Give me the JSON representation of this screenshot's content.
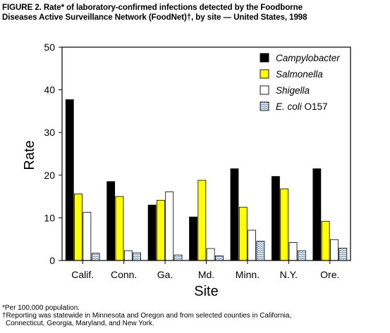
{
  "title": {
    "line1": "FIGURE 2. Rate* of laboratory-confirmed infections detected by the Foodborne",
    "line2": "Diseases Active Surveillance Network (FoodNet)†, by site — United States, 1998"
  },
  "footnotes": {
    "note1": "*Per 100,000 population.",
    "note2": "†Reporting was statewide in Minnesota and Oregon and from selected counties in California,",
    "note2b": "Connecticut, Georgia, Maryland, and New York."
  },
  "chart_data": {
    "type": "bar",
    "xlabel": "Site",
    "ylabel": "Rate",
    "ylim": [
      0,
      50
    ],
    "yticks": [
      0,
      10,
      20,
      30,
      40,
      50
    ],
    "categories": [
      "Calif.",
      "Conn.",
      "Ga.",
      "Md.",
      "Minn.",
      "N.Y.",
      "Ore."
    ],
    "legend_position": "top-right",
    "grid": false,
    "series": [
      {
        "name": "Campylobacter",
        "italic_part": "Campylobacter",
        "suffix": "",
        "color": "#000000",
        "pattern": "solid",
        "values": [
          37.7,
          18.5,
          13.0,
          10.2,
          21.5,
          19.7,
          21.5
        ]
      },
      {
        "name": "Salmonella",
        "italic_part": "Salmonella",
        "suffix": "",
        "color": "#ffff00",
        "pattern": "solid",
        "values": [
          15.6,
          15.0,
          14.1,
          18.8,
          12.5,
          16.8,
          9.2
        ]
      },
      {
        "name": "Shigella",
        "italic_part": "Shigella",
        "suffix": "",
        "color": "#ffffff",
        "pattern": "solid",
        "values": [
          11.3,
          2.3,
          16.1,
          2.8,
          7.1,
          4.2,
          4.9
        ]
      },
      {
        "name": "E. coli O157",
        "italic_part": "E. coli",
        "suffix": " O157",
        "color": "#6699cc",
        "pattern": "wavy",
        "values": [
          1.7,
          1.8,
          1.3,
          1.1,
          4.5,
          2.3,
          2.9
        ]
      }
    ]
  }
}
